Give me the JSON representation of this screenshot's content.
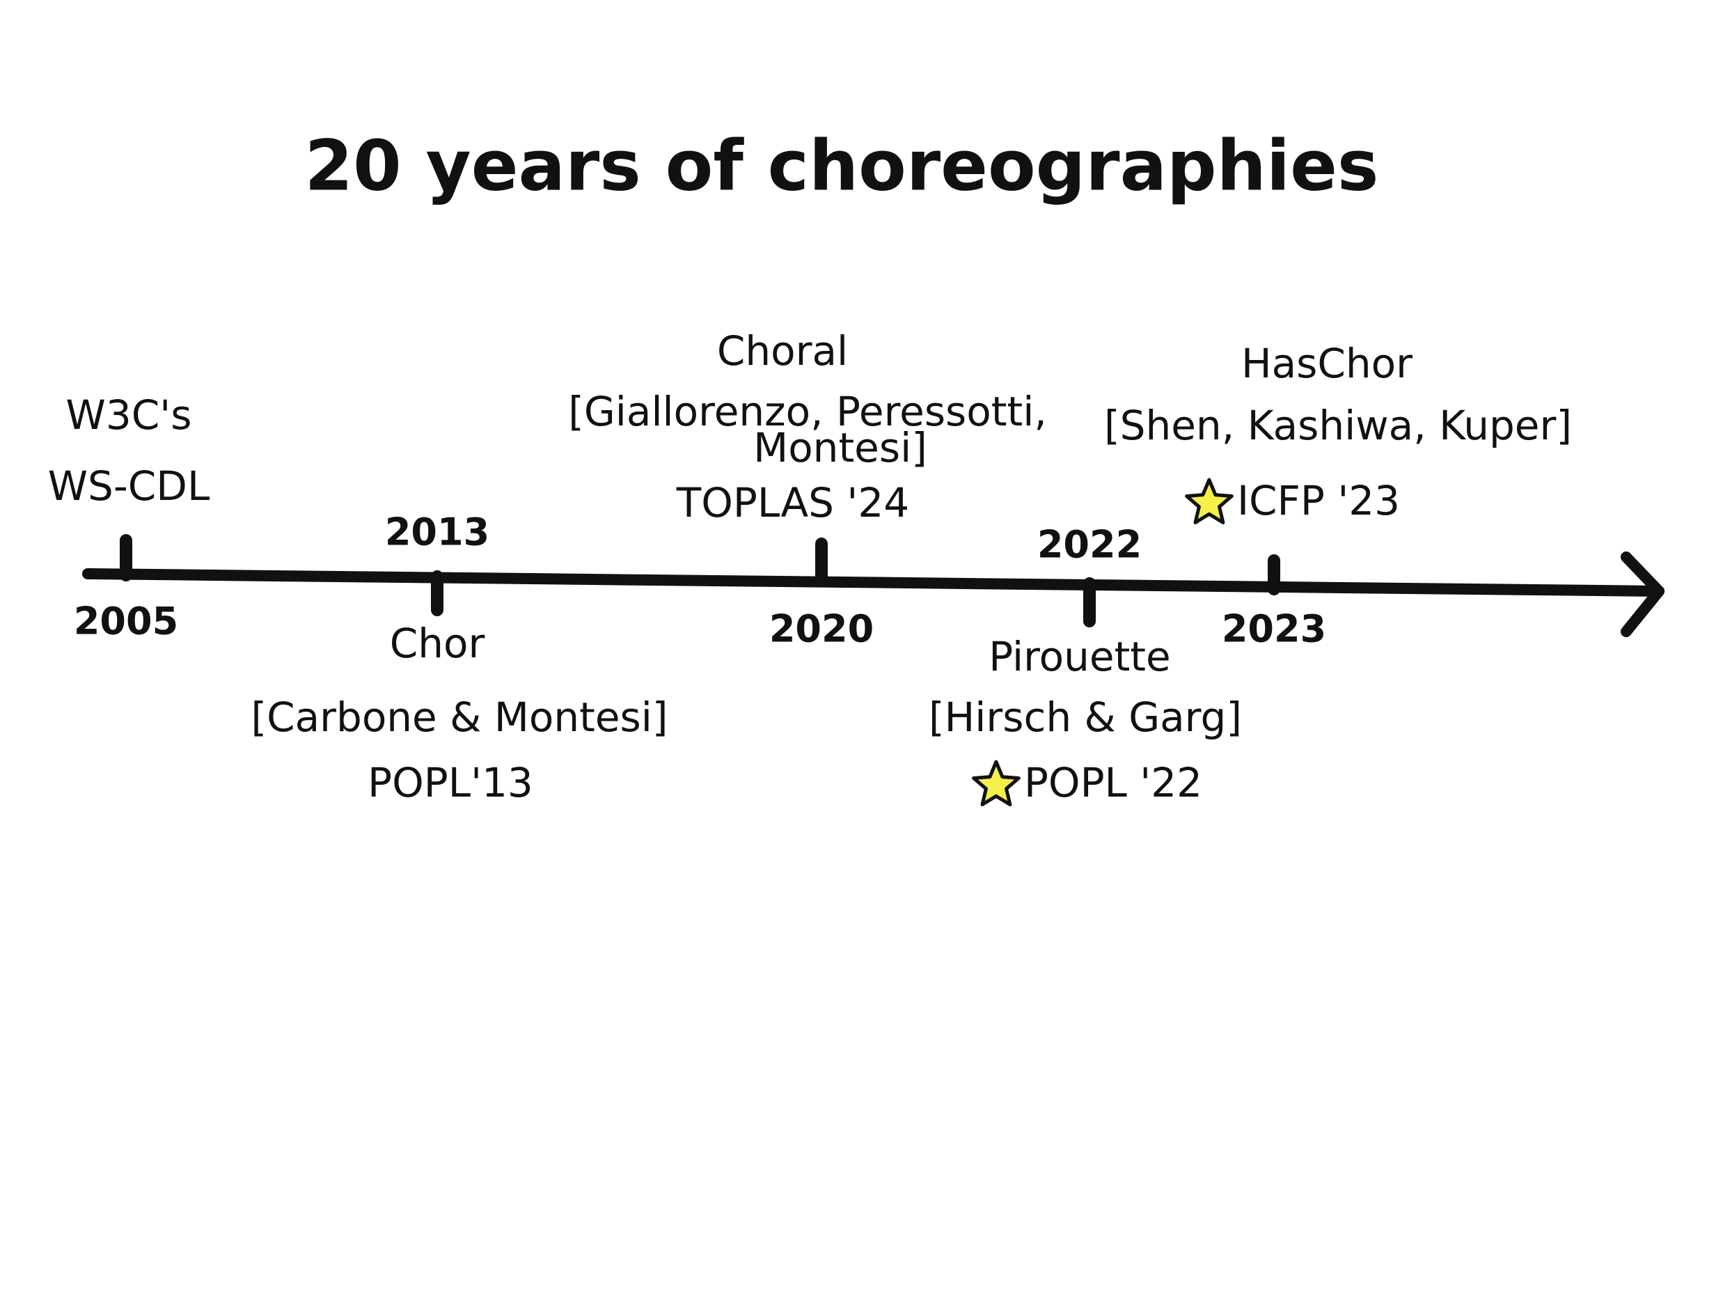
{
  "title": "20 years of choreographies",
  "events": [
    {
      "year": 2005,
      "lines": [
        "W3C's",
        "WS-CDL"
      ],
      "starred": false
    },
    {
      "year": 2013,
      "lines": [
        "Chor",
        "[Carbone & Montesi]",
        "POPL'13"
      ],
      "starred": false
    },
    {
      "year": 2020,
      "lines": [
        "Choral",
        "[Giallorenzo, Peressotti,",
        "Montesi]",
        "TOPLAS '24"
      ],
      "starred": false
    },
    {
      "year": 2022,
      "lines": [
        "Pirouette",
        "[Hirsch & Garg]",
        "POPL '22"
      ],
      "starred": true
    },
    {
      "year": 2023,
      "lines": [
        "HasChor",
        "[Shen, Kashiwa, Kuper]",
        "ICFP '23"
      ],
      "starred": true
    }
  ]
}
